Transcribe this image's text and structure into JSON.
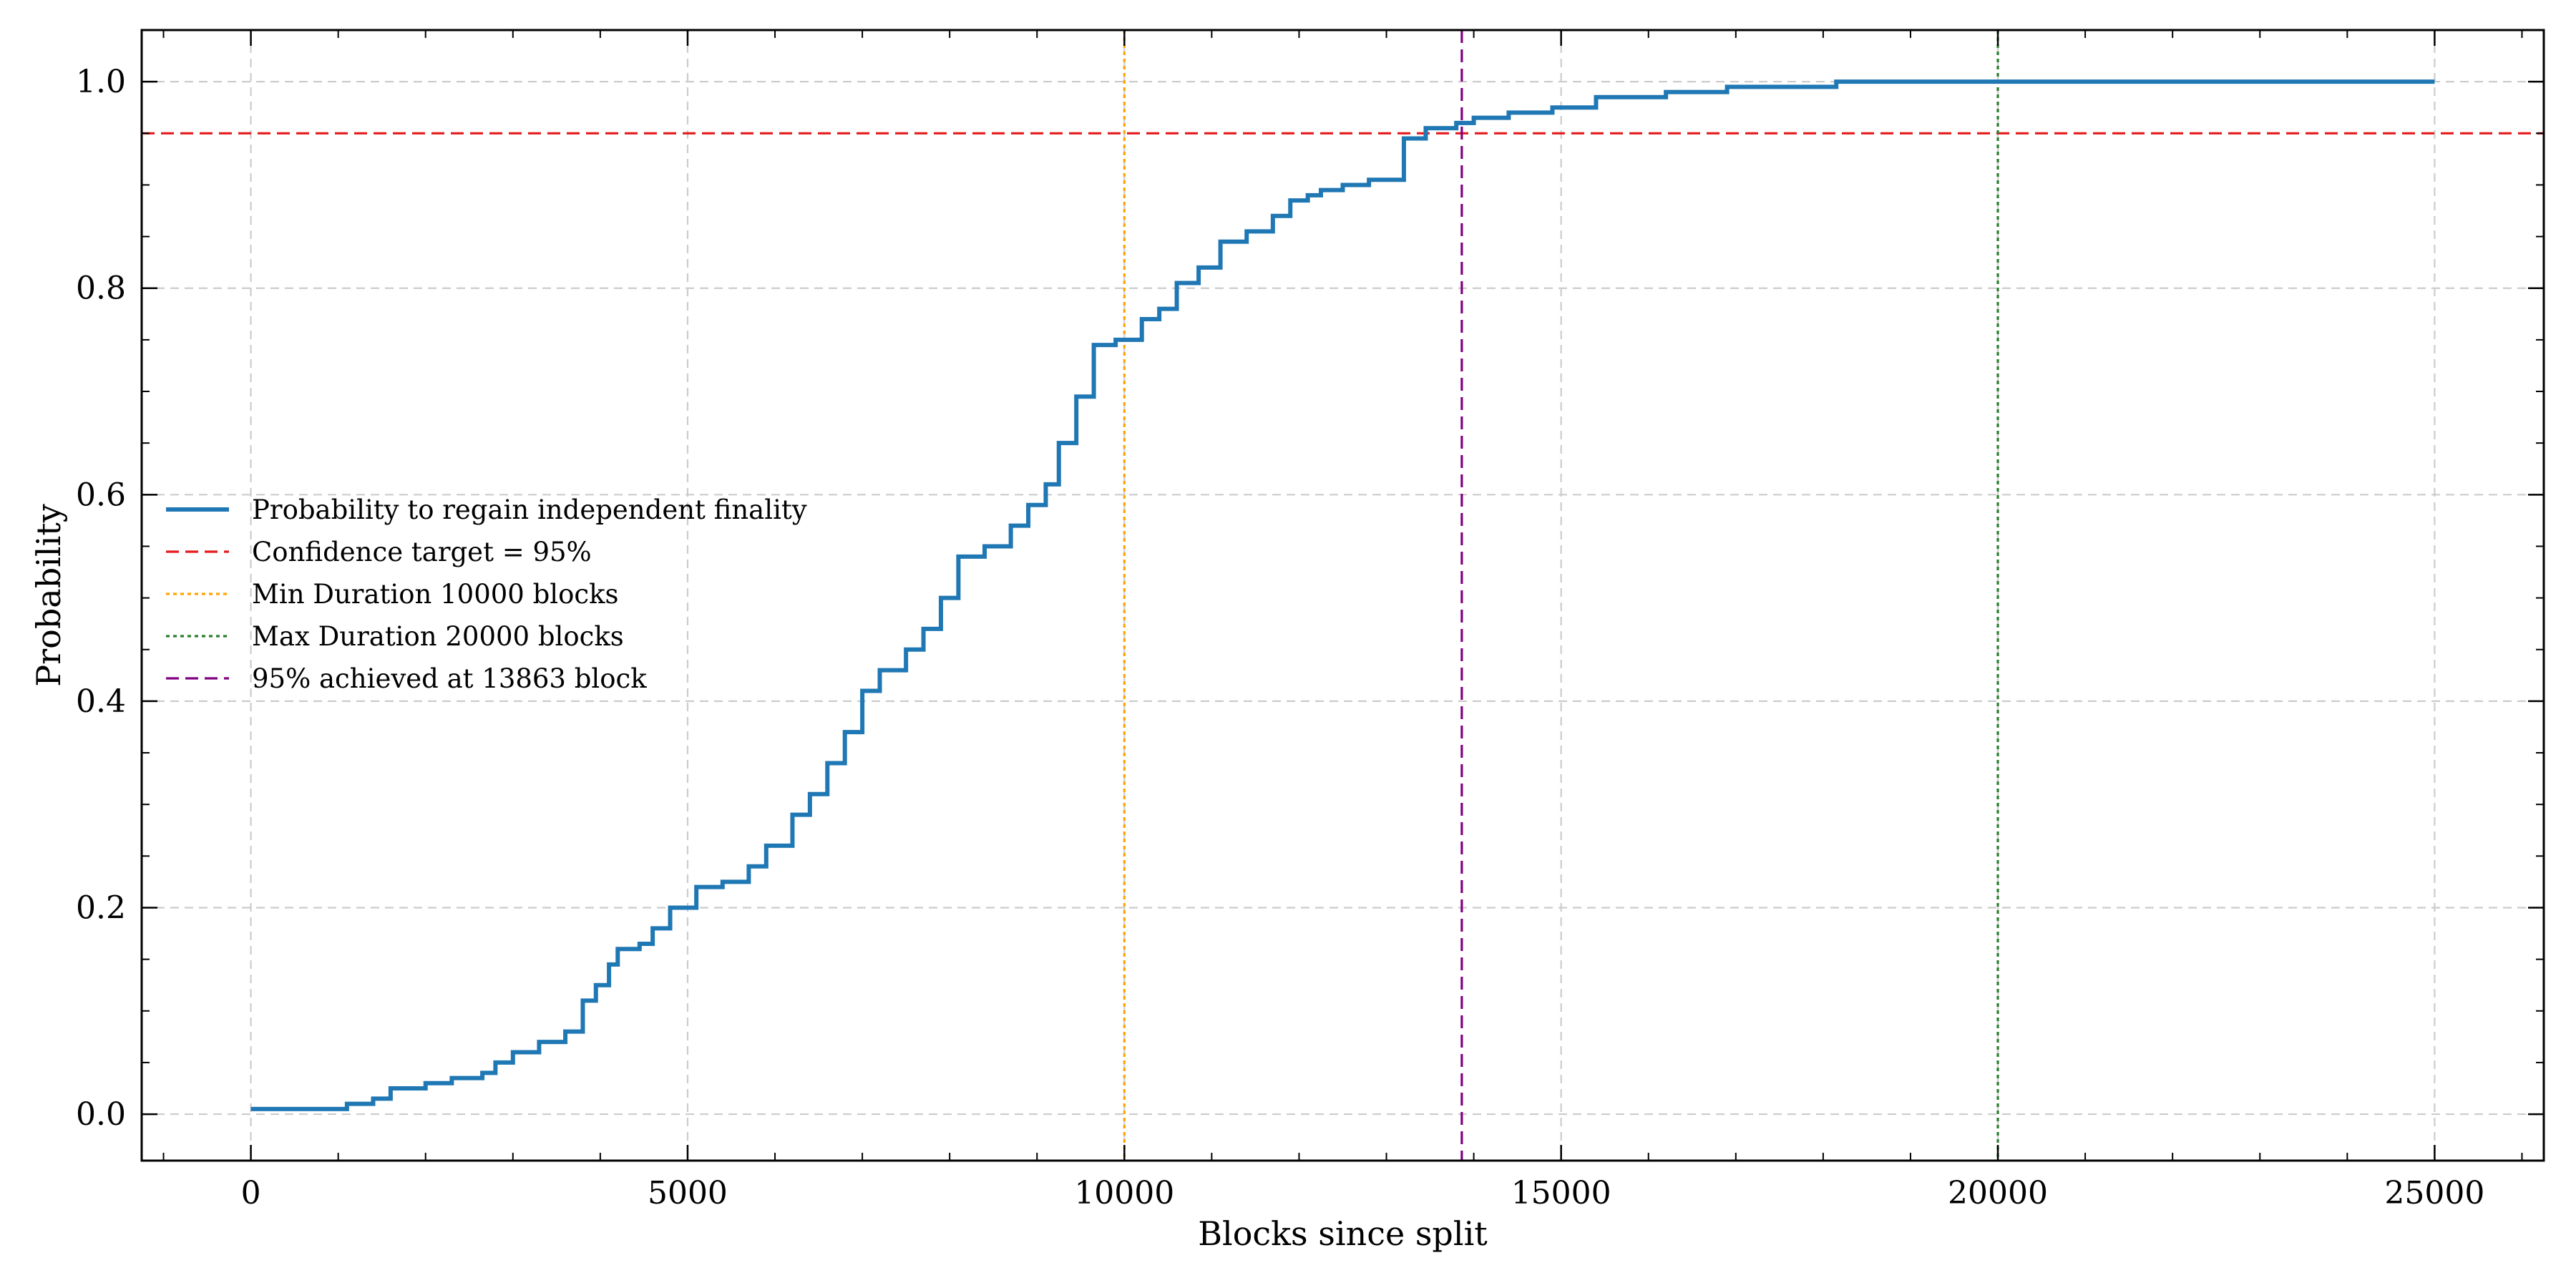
{
  "chart_data": {
    "type": "line",
    "title": "",
    "xlabel": "Blocks since split",
    "ylabel": "Probability",
    "xlim": [
      -1250,
      26250
    ],
    "ylim": [
      -0.045,
      1.05
    ],
    "xticks": [
      0,
      5000,
      10000,
      15000,
      20000,
      25000
    ],
    "xtick_labels": [
      "0",
      "5000",
      "10000",
      "15000",
      "20000",
      "25000"
    ],
    "yticks": [
      0.0,
      0.2,
      0.4,
      0.6,
      0.8,
      1.0
    ],
    "ytick_labels": [
      "0.0",
      "0.2",
      "0.4",
      "0.6",
      "0.8",
      "1.0"
    ],
    "grid": true,
    "legend_position": "center-left",
    "series": [
      {
        "name": "Probability to regain independent finality",
        "color": "#1f77b4",
        "style": "step-solid",
        "x": [
          0,
          1100,
          1400,
          1600,
          2000,
          2300,
          2650,
          2800,
          3000,
          3300,
          3600,
          3800,
          3950,
          4100,
          4200,
          4450,
          4600,
          4800,
          5100,
          5400,
          5700,
          5900,
          6200,
          6400,
          6600,
          6800,
          7000,
          7200,
          7500,
          7700,
          7900,
          8100,
          8400,
          8700,
          8900,
          9100,
          9250,
          9450,
          9650,
          9900,
          10200,
          10400,
          10600,
          10850,
          11100,
          11400,
          11700,
          11900,
          12100,
          12250,
          12500,
          12800,
          13200,
          13450,
          13800,
          14000,
          14400,
          14900,
          15400,
          16200,
          16900,
          18150,
          25000
        ],
        "y": [
          0.005,
          0.01,
          0.015,
          0.025,
          0.03,
          0.035,
          0.04,
          0.05,
          0.06,
          0.07,
          0.08,
          0.11,
          0.125,
          0.145,
          0.16,
          0.165,
          0.18,
          0.2,
          0.22,
          0.225,
          0.24,
          0.26,
          0.29,
          0.31,
          0.34,
          0.37,
          0.41,
          0.43,
          0.45,
          0.47,
          0.5,
          0.54,
          0.55,
          0.57,
          0.59,
          0.61,
          0.65,
          0.695,
          0.745,
          0.75,
          0.77,
          0.78,
          0.805,
          0.82,
          0.845,
          0.855,
          0.87,
          0.885,
          0.89,
          0.895,
          0.9,
          0.905,
          0.945,
          0.955,
          0.96,
          0.965,
          0.97,
          0.975,
          0.985,
          0.99,
          0.995,
          1.0,
          1.0
        ]
      },
      {
        "name": "Confidence target = 95%",
        "color": "#e41a1c",
        "style": "dashed",
        "orientation": "horizontal",
        "value": 0.95
      },
      {
        "name": "Min Duration 10000 blocks",
        "color": "#ffa500",
        "style": "dotted",
        "orientation": "vertical",
        "value": 10000
      },
      {
        "name": "Max Duration 20000 blocks",
        "color": "#2a7d2e",
        "style": "dotted",
        "orientation": "vertical",
        "value": 20000
      },
      {
        "name": "95% achieved at 13863 block",
        "color": "#800080",
        "style": "dashed",
        "orientation": "vertical",
        "value": 13863
      }
    ]
  }
}
